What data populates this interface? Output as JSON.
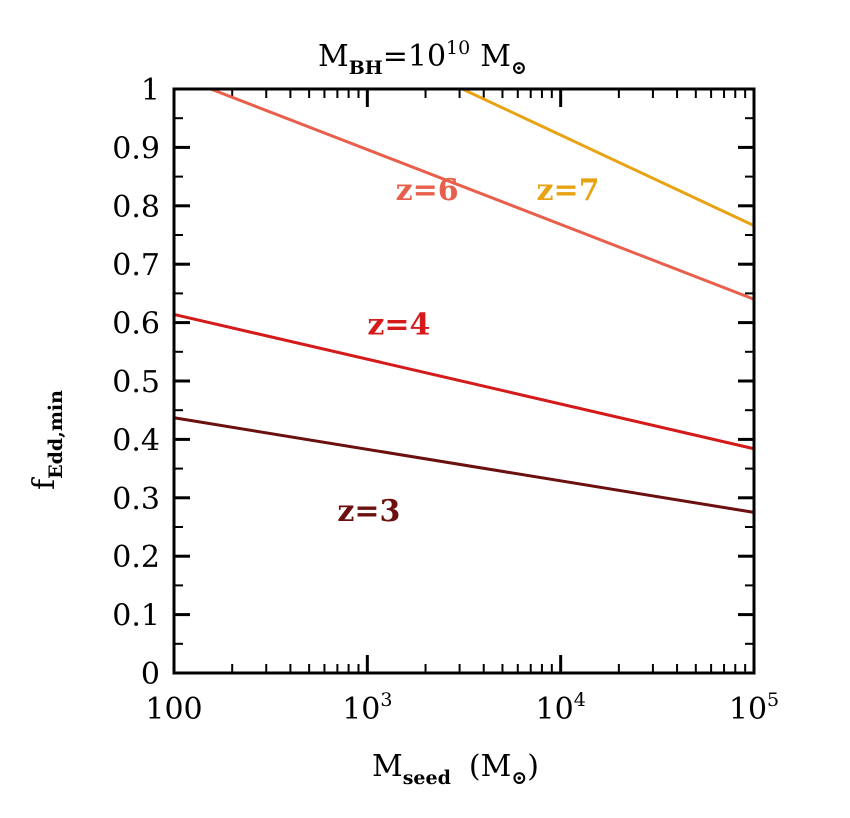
{
  "chart_data": {
    "type": "line",
    "title": {
      "prefix": "M",
      "sub": "BH",
      "eq": "=10",
      "sup": "10",
      "unit": "M",
      "sun": "⊙"
    },
    "xlabel": {
      "main": "M",
      "sub": "seed",
      "unit_open": "(M",
      "sun": "⊙",
      "unit_close": ")"
    },
    "ylabel": {
      "main": "f",
      "sub": "Edd,min"
    },
    "x_scale": "log",
    "xlim": [
      100,
      100000
    ],
    "ylim": [
      0,
      1
    ],
    "x_ticks": [
      {
        "value": 100,
        "base": "100",
        "exp": ""
      },
      {
        "value": 1000,
        "base": "10",
        "exp": "3"
      },
      {
        "value": 10000,
        "base": "10",
        "exp": "4"
      },
      {
        "value": 100000,
        "base": "10",
        "exp": "5"
      }
    ],
    "y_ticks": [
      {
        "value": 0,
        "label": "0"
      },
      {
        "value": 0.1,
        "label": "0.1"
      },
      {
        "value": 0.2,
        "label": "0.2"
      },
      {
        "value": 0.3,
        "label": "0.3"
      },
      {
        "value": 0.4,
        "label": "0.4"
      },
      {
        "value": 0.5,
        "label": "0.5"
      },
      {
        "value": 0.6,
        "label": "0.6"
      },
      {
        "value": 0.7,
        "label": "0.7"
      },
      {
        "value": 0.8,
        "label": "0.8"
      },
      {
        "value": 0.9,
        "label": "0.9"
      },
      {
        "value": 1,
        "label": "1"
      }
    ],
    "grid": false,
    "series": [
      {
        "name": "z=3",
        "color": "#6b0f0f",
        "label_at": {
          "x": 700,
          "y": 0.26
        },
        "x": [
          100,
          100000
        ],
        "y": [
          0.437,
          0.275
        ]
      },
      {
        "name": "z=4",
        "color": "#d41a1a",
        "label_at": {
          "x": 1000,
          "y": 0.58
        },
        "x": [
          100,
          100000
        ],
        "y": [
          0.614,
          0.384
        ]
      },
      {
        "name": "z=6",
        "color": "#e8604c",
        "label_at": {
          "x": 1400,
          "y": 0.81
        },
        "x": [
          155,
          100000
        ],
        "y": [
          1.0,
          0.64
        ]
      },
      {
        "name": "z=7",
        "color": "#e8a313",
        "label_at": {
          "x": 7500,
          "y": 0.81
        },
        "x": [
          3100,
          100000
        ],
        "y": [
          1.0,
          0.766
        ]
      }
    ]
  }
}
